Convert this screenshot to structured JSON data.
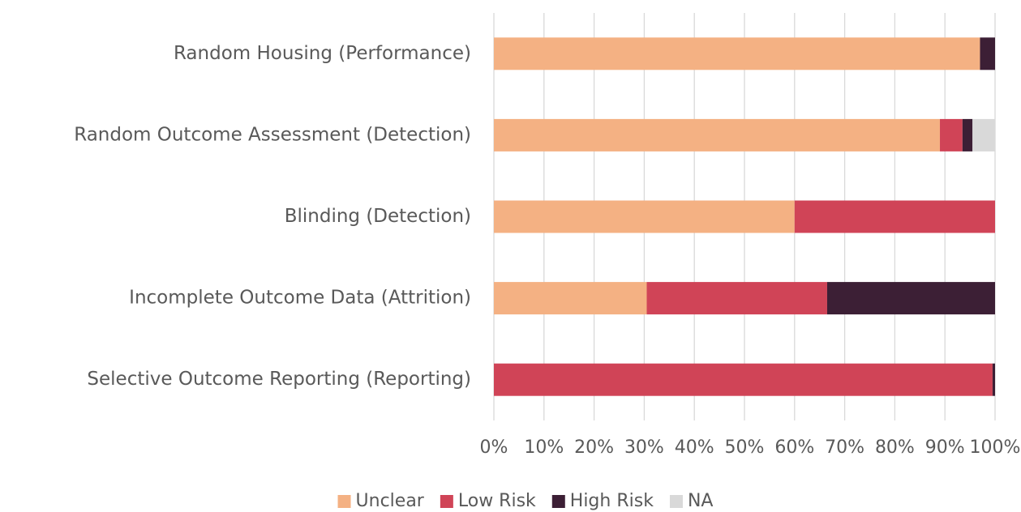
{
  "chart_data": {
    "type": "stacked-barh",
    "categories": [
      "Random Housing (Performance)",
      "Random Outcome Assessment (Detection)",
      "Blinding (Detection)",
      "Incomplete Outcome Data (Attrition)",
      "Selective Outcome Reporting (Reporting)"
    ],
    "series": [
      {
        "name": "Unclear",
        "color": "#f4b183",
        "values": [
          97,
          89,
          60,
          30.5,
          0
        ]
      },
      {
        "name": "Low Risk",
        "color": "#d04457",
        "values": [
          0,
          4.5,
          40,
          36,
          99.5
        ]
      },
      {
        "name": "High Risk",
        "color": "#3c1f35",
        "values": [
          3,
          2,
          0,
          33.5,
          0.5
        ]
      },
      {
        "name": "NA",
        "color": "#d9d9d9",
        "values": [
          0,
          4.5,
          0,
          0,
          0
        ]
      }
    ],
    "xlim": [
      0,
      100
    ],
    "xticks": [
      {
        "value": 0,
        "label": "0%"
      },
      {
        "value": 10,
        "label": "10%"
      },
      {
        "value": 20,
        "label": "20%"
      },
      {
        "value": 30,
        "label": "30%"
      },
      {
        "value": 40,
        "label": "40%"
      },
      {
        "value": 50,
        "label": "50%"
      },
      {
        "value": 60,
        "label": "60%"
      },
      {
        "value": 70,
        "label": "70%"
      },
      {
        "value": 80,
        "label": "80%"
      },
      {
        "value": 90,
        "label": "90%"
      },
      {
        "value": 100,
        "label": "100%"
      }
    ],
    "grid": true,
    "legend": "bottom"
  }
}
